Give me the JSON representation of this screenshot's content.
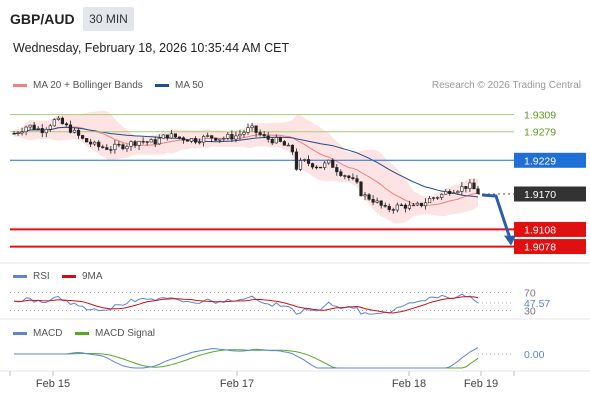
{
  "header": {
    "symbol": "GBP/AUD",
    "timeframe": "30 MIN",
    "datetime": "Wednesday, February 18, 2026 10:35:44 AM CET",
    "research": "Research © 2026 Trading Central"
  },
  "colors": {
    "ma20": "#f08080",
    "band": "#fcd9d9",
    "ma50": "#1f4e8c",
    "resistance": "#a8cc7a",
    "resistance_label": "#5a9a20",
    "pivot": "#1f6fd6",
    "support": "#e01010",
    "current": "#333333",
    "up": "#ffffff",
    "down": "#222222",
    "rsi": "#5b84d6",
    "rsi_ma": "#d01010",
    "macd": "#5b84d6",
    "macd_signal": "#55aa22",
    "arrow": "#2a5fa8"
  },
  "chart_data": [
    {
      "type": "candlestick",
      "legend": [
        {
          "name": "MA 20 + Bollinger Bands"
        },
        {
          "name": "MA 50"
        }
      ],
      "x_ticks": [
        "Feb 15",
        "Feb 17",
        "Feb 18",
        "Feb 19"
      ],
      "ylim": [
        1.9058,
        1.9338
      ],
      "levels": [
        {
          "value": 1.9309,
          "label": "1.9309",
          "role": "resistance"
        },
        {
          "value": 1.9279,
          "label": "1.9279",
          "role": "resistance"
        },
        {
          "value": 1.9229,
          "label": "1.9229",
          "role": "pivot"
        },
        {
          "value": 1.917,
          "label": "1.9170",
          "role": "current"
        },
        {
          "value": 1.9108,
          "label": "1.9108",
          "role": "support"
        },
        {
          "value": 1.9078,
          "label": "1.9078",
          "role": "support"
        }
      ],
      "forecast_target": 1.9078
    },
    {
      "type": "line",
      "legend": [
        {
          "name": "RSI"
        },
        {
          "name": "9MA"
        }
      ],
      "ticks": [
        {
          "value": 70,
          "label": "70"
        },
        {
          "value": 30,
          "label": "30"
        }
      ],
      "last_value": "47.57"
    },
    {
      "type": "line",
      "legend": [
        {
          "name": "MACD"
        },
        {
          "name": "MACD Signal"
        }
      ],
      "last_value": "0.00"
    }
  ]
}
